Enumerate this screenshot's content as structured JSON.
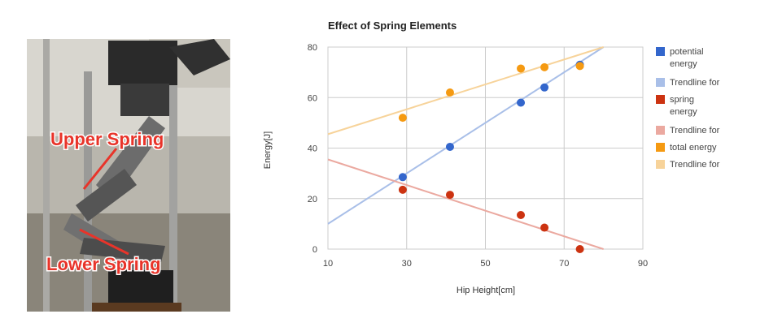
{
  "photo": {
    "callouts": [
      {
        "label": "Upper Spring"
      },
      {
        "label": "Lower Spring"
      }
    ]
  },
  "chart_data": {
    "type": "scatter",
    "title": "Effect of Spring Elements",
    "xlabel": "Hip Height[cm]",
    "ylabel": "Energy[J]",
    "xlim": [
      10,
      90
    ],
    "ylim": [
      0,
      80
    ],
    "xticks": [
      "10",
      "30",
      "50",
      "70",
      "90"
    ],
    "yticks": [
      "0",
      "20",
      "40",
      "60",
      "80"
    ],
    "grid": true,
    "legend_position": "right",
    "series": [
      {
        "name": "potential energy",
        "color": "#3366cc",
        "points": [
          [
            29,
            28.5
          ],
          [
            41,
            40.5
          ],
          [
            59,
            58
          ],
          [
            65,
            64
          ],
          [
            74,
            73
          ]
        ],
        "trendline": {
          "name": "Trendline for",
          "color": "#a9bfe8",
          "from": [
            10,
            10
          ],
          "to": [
            80,
            80
          ]
        }
      },
      {
        "name": "spring energy",
        "color": "#cc3311",
        "points": [
          [
            29,
            23.5
          ],
          [
            41,
            21.5
          ],
          [
            59,
            13.5
          ],
          [
            65,
            8.5
          ],
          [
            74,
            0
          ]
        ],
        "trendline": {
          "name": "Trendline for",
          "color": "#eba9a0",
          "from": [
            10,
            35.5
          ],
          "to": [
            80,
            0
          ]
        }
      },
      {
        "name": "total energy",
        "color": "#f59a12",
        "points": [
          [
            29,
            52
          ],
          [
            41,
            62
          ],
          [
            59,
            71.5
          ],
          [
            65,
            72
          ],
          [
            74,
            72.5
          ]
        ],
        "trendline": {
          "name": "Trendline for",
          "color": "#f7d39a",
          "from": [
            10,
            45.5
          ],
          "to": [
            80,
            80
          ]
        }
      }
    ]
  }
}
